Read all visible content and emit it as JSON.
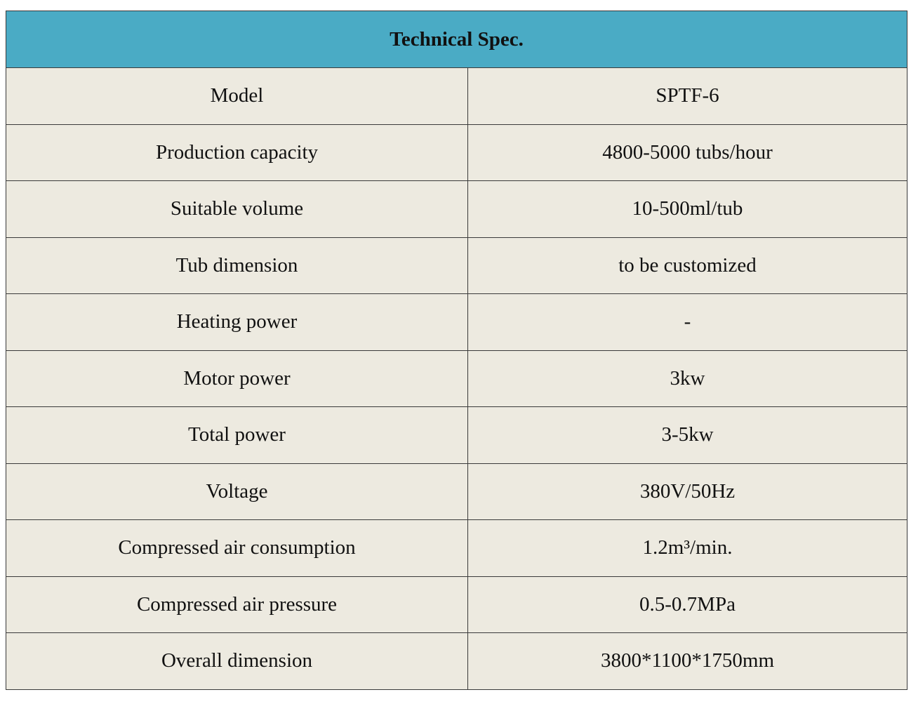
{
  "title": "Technical Spec.",
  "rows": [
    {
      "label": "Model",
      "value": "SPTF-6"
    },
    {
      "label": "Production capacity",
      "value": "4800-5000 tubs/hour"
    },
    {
      "label": "Suitable volume",
      "value": "10-500ml/tub"
    },
    {
      "label": "Tub dimension",
      "value": "to be customized"
    },
    {
      "label": "Heating power",
      "value": "-"
    },
    {
      "label": "Motor power",
      "value": "3kw"
    },
    {
      "label": "Total power",
      "value": "3-5kw"
    },
    {
      "label": "Voltage",
      "value": "380V/50Hz"
    },
    {
      "label": "Compressed air consumption",
      "value": "1.2m³/min."
    },
    {
      "label": "Compressed air pressure",
      "value": "0.5-0.7MPa"
    },
    {
      "label": "Overall dimension",
      "value": "3800*1100*1750mm"
    }
  ],
  "colors": {
    "header": "#4aabc5",
    "body": "#edeae0"
  }
}
